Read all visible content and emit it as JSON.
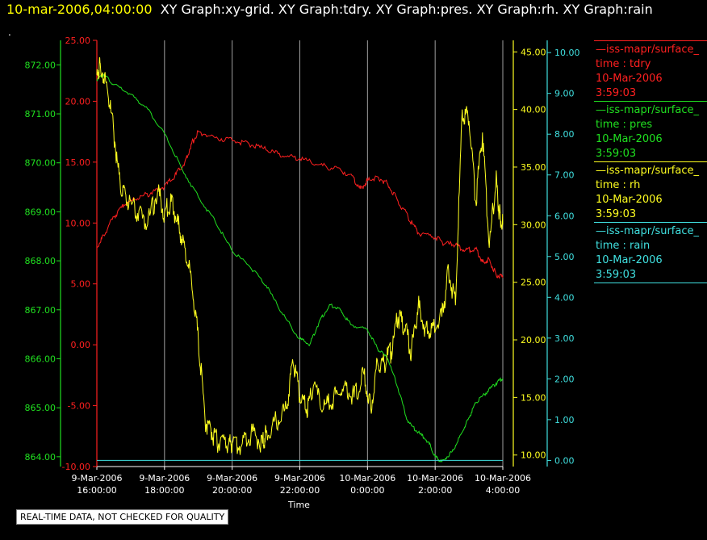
{
  "header": {
    "timestamp": "10-mar-2006,04:00:00",
    "graphs": "XY Graph:xy-grid.  XY Graph:tdry.  XY Graph:pres.  XY Graph:rh.  XY Graph:rain",
    "dot": "."
  },
  "notice": "REAL-TIME DATA, NOT CHECKED FOR QUALITY",
  "colors": {
    "tdry": "#ff2020",
    "pres": "#20e020",
    "rh": "#ffff20",
    "rain": "#40e0e0",
    "grid": "#a0a0a0"
  },
  "legend": [
    {
      "source": "—iss-mapr/surface_",
      "label": "time : tdry",
      "date": "10-Mar-2006",
      "time": "3:59:03",
      "color": "#ff2020"
    },
    {
      "source": "—iss-mapr/surface_",
      "label": "time : pres",
      "date": "10-Mar-2006",
      "time": "3:59:03",
      "color": "#20e020"
    },
    {
      "source": "—iss-mapr/surface_",
      "label": "time : rh",
      "date": "10-Mar-2006",
      "time": "3:59:03",
      "color": "#ffff20"
    },
    {
      "source": "—iss-mapr/surface_",
      "label": "time : rain",
      "date": "10-Mar-2006",
      "time": "3:59:03",
      "color": "#40e0e0"
    }
  ],
  "chart_data": {
    "type": "line",
    "xlabel": "Time",
    "xticks": [
      [
        "9-Mar-2006",
        "16:00:00"
      ],
      [
        "9-Mar-2006",
        "18:00:00"
      ],
      [
        "9-Mar-2006",
        "20:00:00"
      ],
      [
        "9-Mar-2006",
        "22:00:00"
      ],
      [
        "10-Mar-2006",
        "0:00:00"
      ],
      [
        "10-Mar-2006",
        "2:00:00"
      ],
      [
        "10-Mar-2006",
        "4:00:00"
      ]
    ],
    "xlim_hours": [
      16,
      28
    ],
    "grid": "vertical",
    "axes": {
      "pres": {
        "range": [
          863.8,
          872.5
        ],
        "ticks": [
          "872.00",
          "871.00",
          "870.00",
          "869.00",
          "868.00",
          "867.00",
          "866.00",
          "865.00",
          "864.00"
        ],
        "tick_values": [
          872,
          871,
          870,
          869,
          868,
          867,
          866,
          865,
          864
        ]
      },
      "tdry": {
        "range": [
          -10,
          25
        ],
        "ticks": [
          "25.00",
          "20.00",
          "15.00",
          "10.00",
          "5.00",
          "0.00",
          "-5.00",
          "-10.00"
        ],
        "tick_values": [
          25,
          20,
          15,
          10,
          5,
          0,
          -5,
          -10
        ]
      },
      "rh": {
        "range": [
          9,
          46
        ],
        "ticks": [
          "45.00",
          "40.00",
          "35.00",
          "30.00",
          "25.00",
          "20.00",
          "15.00",
          "10.00"
        ],
        "tick_values": [
          45,
          40,
          35,
          30,
          25,
          20,
          15,
          10
        ]
      },
      "rain": {
        "range": [
          -0.15,
          10.3
        ],
        "ticks": [
          "10.00",
          "9.00",
          "8.00",
          "7.00",
          "6.00",
          "5.00",
          "4.00",
          "3.00",
          "2.00",
          "1.00",
          "0.00"
        ],
        "tick_values": [
          10,
          9,
          8,
          7,
          6,
          5,
          4,
          3,
          2,
          1,
          0
        ]
      }
    },
    "series": [
      {
        "name": "tdry",
        "x": [
          16,
          16.2,
          16.5,
          16.8,
          17.2,
          17.6,
          18,
          18.3,
          18.6,
          18.8,
          19,
          19.5,
          20,
          20.5,
          21,
          21.5,
          22,
          22.5,
          23,
          23.5,
          23.8,
          24,
          24.3,
          24.6,
          24.9,
          25.2,
          25.5,
          26,
          26.3,
          26.6,
          26.9,
          27.2,
          27.4,
          27.6,
          27.8,
          28
        ],
        "values": [
          8,
          9,
          10.5,
          11.5,
          12,
          12.5,
          13,
          13.8,
          15,
          16.5,
          17.5,
          17,
          16.8,
          16.5,
          16,
          15.5,
          15.3,
          14.8,
          14.5,
          14,
          12.8,
          13.5,
          13.8,
          13.2,
          11.8,
          10.5,
          9.2,
          8.8,
          8.3,
          8.2,
          7.8,
          7.9,
          6.8,
          7,
          5.8,
          5.5
        ]
      },
      {
        "name": "pres",
        "x": [
          16,
          16.2,
          16.5,
          17,
          17.5,
          18,
          18.5,
          19,
          19.5,
          20,
          20.5,
          21,
          21.5,
          22,
          22.3,
          22.6,
          22.9,
          23.2,
          23.5,
          24,
          24.3,
          24.6,
          24.9,
          25.2,
          25.5,
          25.8,
          26,
          26.2,
          26.5,
          26.8,
          27,
          27.2,
          27.5,
          27.8,
          28
        ],
        "values": [
          871.7,
          871.8,
          871.6,
          871.4,
          871.1,
          870.6,
          869.9,
          869.3,
          868.8,
          868.2,
          867.9,
          867.5,
          866.9,
          866.4,
          866.3,
          866.8,
          867.1,
          867.0,
          866.7,
          866.6,
          866.2,
          866.0,
          865.4,
          864.7,
          864.5,
          864.3,
          864.0,
          863.9,
          864.1,
          864.5,
          864.8,
          865.1,
          865.3,
          865.5,
          865.6
        ]
      },
      {
        "name": "rh",
        "x": [
          16,
          16.1,
          16.3,
          16.5,
          16.7,
          16.9,
          17.2,
          17.5,
          17.8,
          18,
          18.2,
          18.4,
          18.6,
          18.8,
          19,
          19.2,
          19.4,
          19.6,
          19.9,
          20,
          20.3,
          20.6,
          20.9,
          21,
          21.3,
          21.6,
          21.8,
          22,
          22.2,
          22.4,
          22.7,
          23,
          23.3,
          23.6,
          23.9,
          24.1,
          24.3,
          24.5,
          24.7,
          24.9,
          25.1,
          25.3,
          25.5,
          25.7,
          25.9,
          26.2,
          26.4,
          26.6,
          26.8,
          27,
          27.2,
          27.4,
          27.6,
          27.8,
          27.9,
          28
        ],
        "values": [
          43,
          44,
          42,
          38,
          33,
          32,
          31,
          30,
          33,
          31,
          32,
          30,
          28,
          25,
          20,
          13,
          12,
          11,
          11,
          11,
          11,
          12,
          11,
          12,
          13,
          14,
          18,
          15,
          14,
          16,
          14,
          15,
          16,
          15,
          17,
          14,
          18,
          18,
          19,
          22,
          21,
          19,
          23,
          21,
          21,
          22,
          26,
          23,
          40,
          39,
          32,
          38,
          28,
          34,
          31,
          30
        ]
      },
      {
        "name": "rain",
        "x": [
          16,
          28
        ],
        "values": [
          0,
          0
        ]
      }
    ]
  }
}
